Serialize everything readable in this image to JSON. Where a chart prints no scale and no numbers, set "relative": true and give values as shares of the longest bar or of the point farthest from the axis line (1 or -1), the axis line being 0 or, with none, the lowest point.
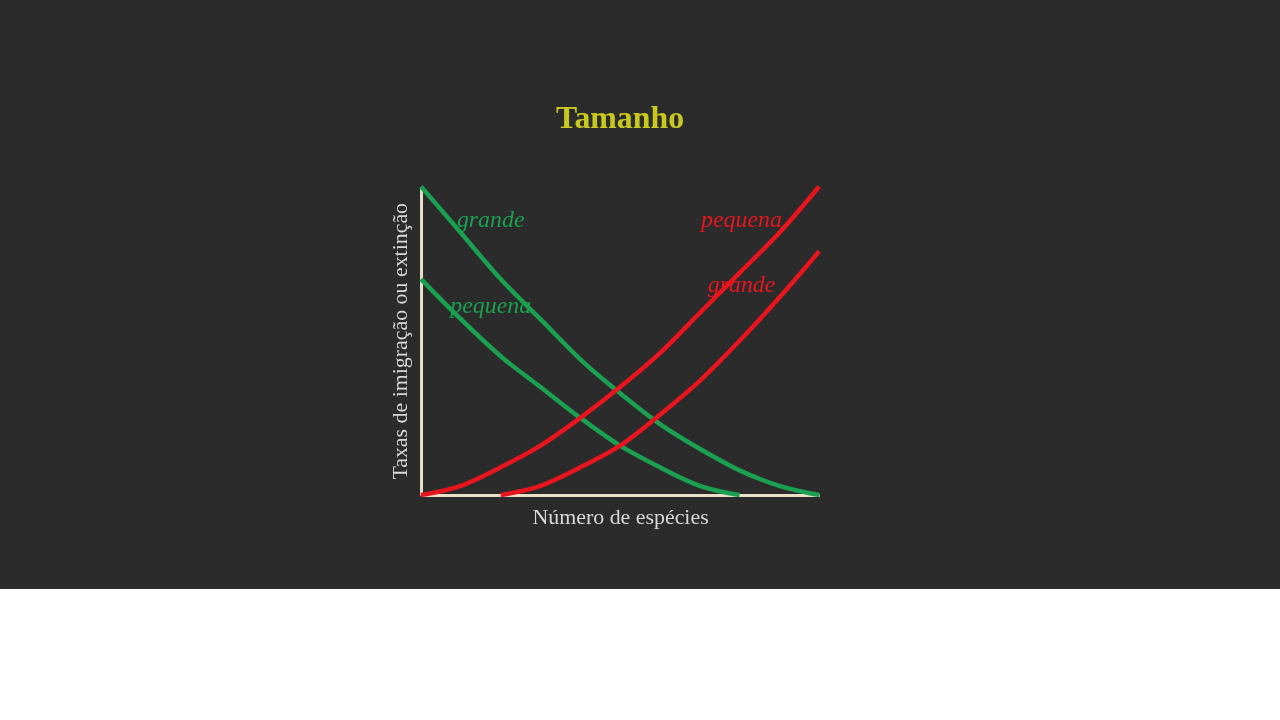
{
  "chart_data": {
    "type": "line",
    "title": "Tamanho",
    "xlabel": "Número de espécies",
    "ylabel": "Taxas de imigração ou extinção",
    "relative": true,
    "tick_labels": false,
    "grid": false,
    "legend": false,
    "marker": "none",
    "line_style": "solid",
    "categories": [
      null,
      null,
      null,
      null,
      null,
      null,
      null,
      null,
      null,
      null,
      null
    ],
    "series": [
      {
        "name": "grande",
        "color": "#1aa050",
        "values": [
          1,
          0.85,
          0.7,
          0.57,
          0.44,
          0.33,
          0.23,
          0.15,
          0.08,
          0.03,
          0
        ]
      },
      {
        "name": "pequena",
        "color": "#1aa050",
        "values": [
          0.7,
          0.57,
          0.45,
          0.35,
          0.25,
          0.16,
          0.09,
          0.03,
          0,
          null,
          null
        ]
      },
      {
        "name": "pequena",
        "color": "#e8141e",
        "values": [
          0,
          0.03,
          0.09,
          0.16,
          0.25,
          0.35,
          0.46,
          0.59,
          0.72,
          0.85,
          1
        ]
      },
      {
        "name": "grande",
        "color": "#e8141e",
        "values": [
          null,
          null,
          0,
          0.03,
          0.09,
          0.16,
          0.26,
          0.37,
          0.5,
          0.64,
          0.79
        ]
      }
    ]
  }
}
